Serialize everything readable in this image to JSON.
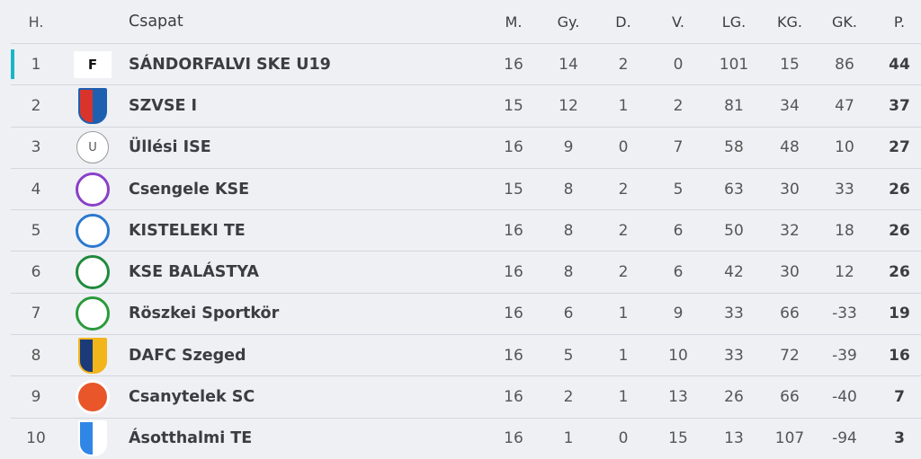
{
  "headers": {
    "pos": "H.",
    "team": "Csapat",
    "m": "M.",
    "gy": "Gy.",
    "d": "D.",
    "v": "V.",
    "lg": "LG.",
    "kg": "KG.",
    "gk": "GK.",
    "p": "P."
  },
  "accent_color": "#1ab6c8",
  "rows": [
    {
      "pos": "1",
      "team": "SÁNDORFALVI SKE U19",
      "m": "16",
      "gy": "14",
      "d": "2",
      "v": "0",
      "lg": "101",
      "kg": "15",
      "gk": "86",
      "p": "44",
      "logo": "sf-shield-logo",
      "c1": "#ffffff",
      "c2": "#111111"
    },
    {
      "pos": "2",
      "team": "SZVSE I",
      "m": "15",
      "gy": "12",
      "d": "1",
      "v": "2",
      "lg": "81",
      "kg": "34",
      "gk": "47",
      "p": "37",
      "logo": "szvse-shield-logo",
      "c1": "#d8342c",
      "c2": "#1f5fb0"
    },
    {
      "pos": "3",
      "team": "Üllési ISE",
      "m": "16",
      "gy": "9",
      "d": "0",
      "v": "7",
      "lg": "58",
      "kg": "48",
      "gk": "10",
      "p": "27",
      "logo": "u-letter-logo",
      "c1": "#ffffff",
      "c2": "#888888"
    },
    {
      "pos": "4",
      "team": "Csengele KSE",
      "m": "15",
      "gy": "8",
      "d": "2",
      "v": "5",
      "lg": "63",
      "kg": "30",
      "gk": "33",
      "p": "26",
      "logo": "csengele-logo",
      "c1": "#ffffff",
      "c2": "#8a3fc9"
    },
    {
      "pos": "5",
      "team": "KISTELEKI TE",
      "m": "16",
      "gy": "8",
      "d": "2",
      "v": "6",
      "lg": "50",
      "kg": "32",
      "gk": "18",
      "p": "26",
      "logo": "kistelek-logo",
      "c1": "#ffffff",
      "c2": "#2a78d0"
    },
    {
      "pos": "6",
      "team": "KSE BALÁSTYA",
      "m": "16",
      "gy": "8",
      "d": "2",
      "v": "6",
      "lg": "42",
      "kg": "30",
      "gk": "12",
      "p": "26",
      "logo": "balastya-logo",
      "c1": "#ffffff",
      "c2": "#1e8a3c"
    },
    {
      "pos": "7",
      "team": "Röszkei Sportkör",
      "m": "16",
      "gy": "6",
      "d": "1",
      "v": "9",
      "lg": "33",
      "kg": "66",
      "gk": "-33",
      "p": "19",
      "logo": "roszke-logo",
      "c1": "#ffffff",
      "c2": "#2a9a3a"
    },
    {
      "pos": "8",
      "team": "DAFC Szeged",
      "m": "16",
      "gy": "5",
      "d": "1",
      "v": "10",
      "lg": "33",
      "kg": "72",
      "gk": "-39",
      "p": "16",
      "logo": "dafc-shield-logo",
      "c1": "#1b3a78",
      "c2": "#f2b51c"
    },
    {
      "pos": "9",
      "team": "Csanytelek SC",
      "m": "16",
      "gy": "2",
      "d": "1",
      "v": "13",
      "lg": "26",
      "kg": "66",
      "gk": "-40",
      "p": "7",
      "logo": "csanytelek-logo",
      "c1": "#e8562a",
      "c2": "#ffffff"
    },
    {
      "pos": "10",
      "team": "Ásotthalmi TE",
      "m": "16",
      "gy": "1",
      "d": "0",
      "v": "15",
      "lg": "13",
      "kg": "107",
      "gk": "-94",
      "p": "3",
      "logo": "asotthalom-shield-logo",
      "c1": "#2f86e6",
      "c2": "#ffffff"
    }
  ]
}
